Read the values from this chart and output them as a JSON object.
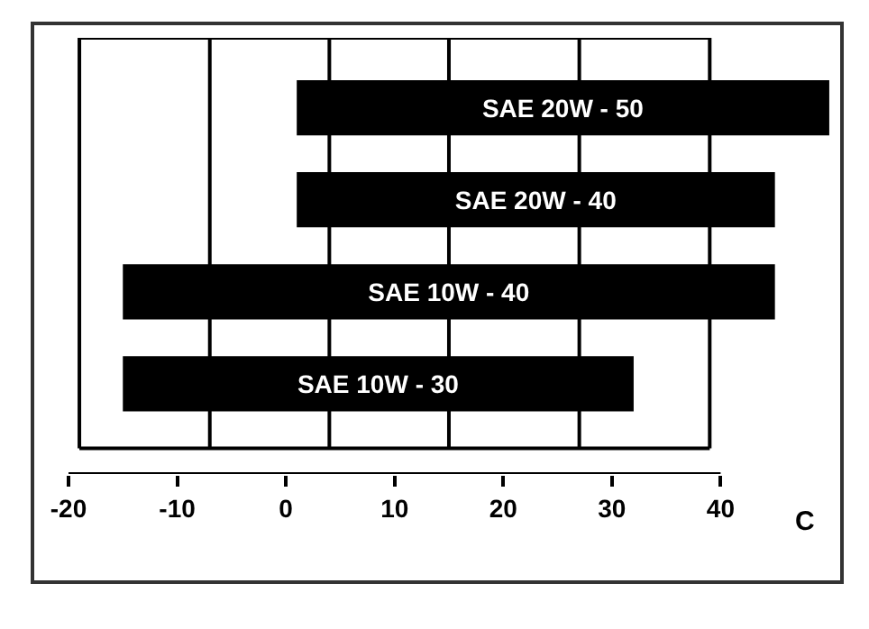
{
  "chart_data": {
    "type": "bar",
    "orientation": "horizontal",
    "categories": [
      "SAE 20W - 50",
      "SAE 20W - 40",
      "SAE 10W - 40",
      "SAE 10W - 30"
    ],
    "base": [
      1,
      1,
      -15,
      -15
    ],
    "values": [
      49,
      44,
      60,
      47
    ],
    "color": "#000000",
    "xlim": [
      -20,
      51
    ],
    "xticks": [
      -20,
      -10,
      0,
      10,
      20,
      30,
      40
    ],
    "xlabel": "C",
    "tick_labels": "x",
    "ref_lines": [
      {
        "axis": "x",
        "value": -19,
        "color": "#000000"
      },
      {
        "axis": "x",
        "value": -7,
        "color": "#000000"
      },
      {
        "axis": "x",
        "value": 4,
        "color": "#000000"
      },
      {
        "axis": "x",
        "value": 15,
        "color": "#000000"
      },
      {
        "axis": "x",
        "value": 27,
        "color": "#000000"
      },
      {
        "axis": "x",
        "value": 39,
        "color": "#000000"
      }
    ]
  }
}
